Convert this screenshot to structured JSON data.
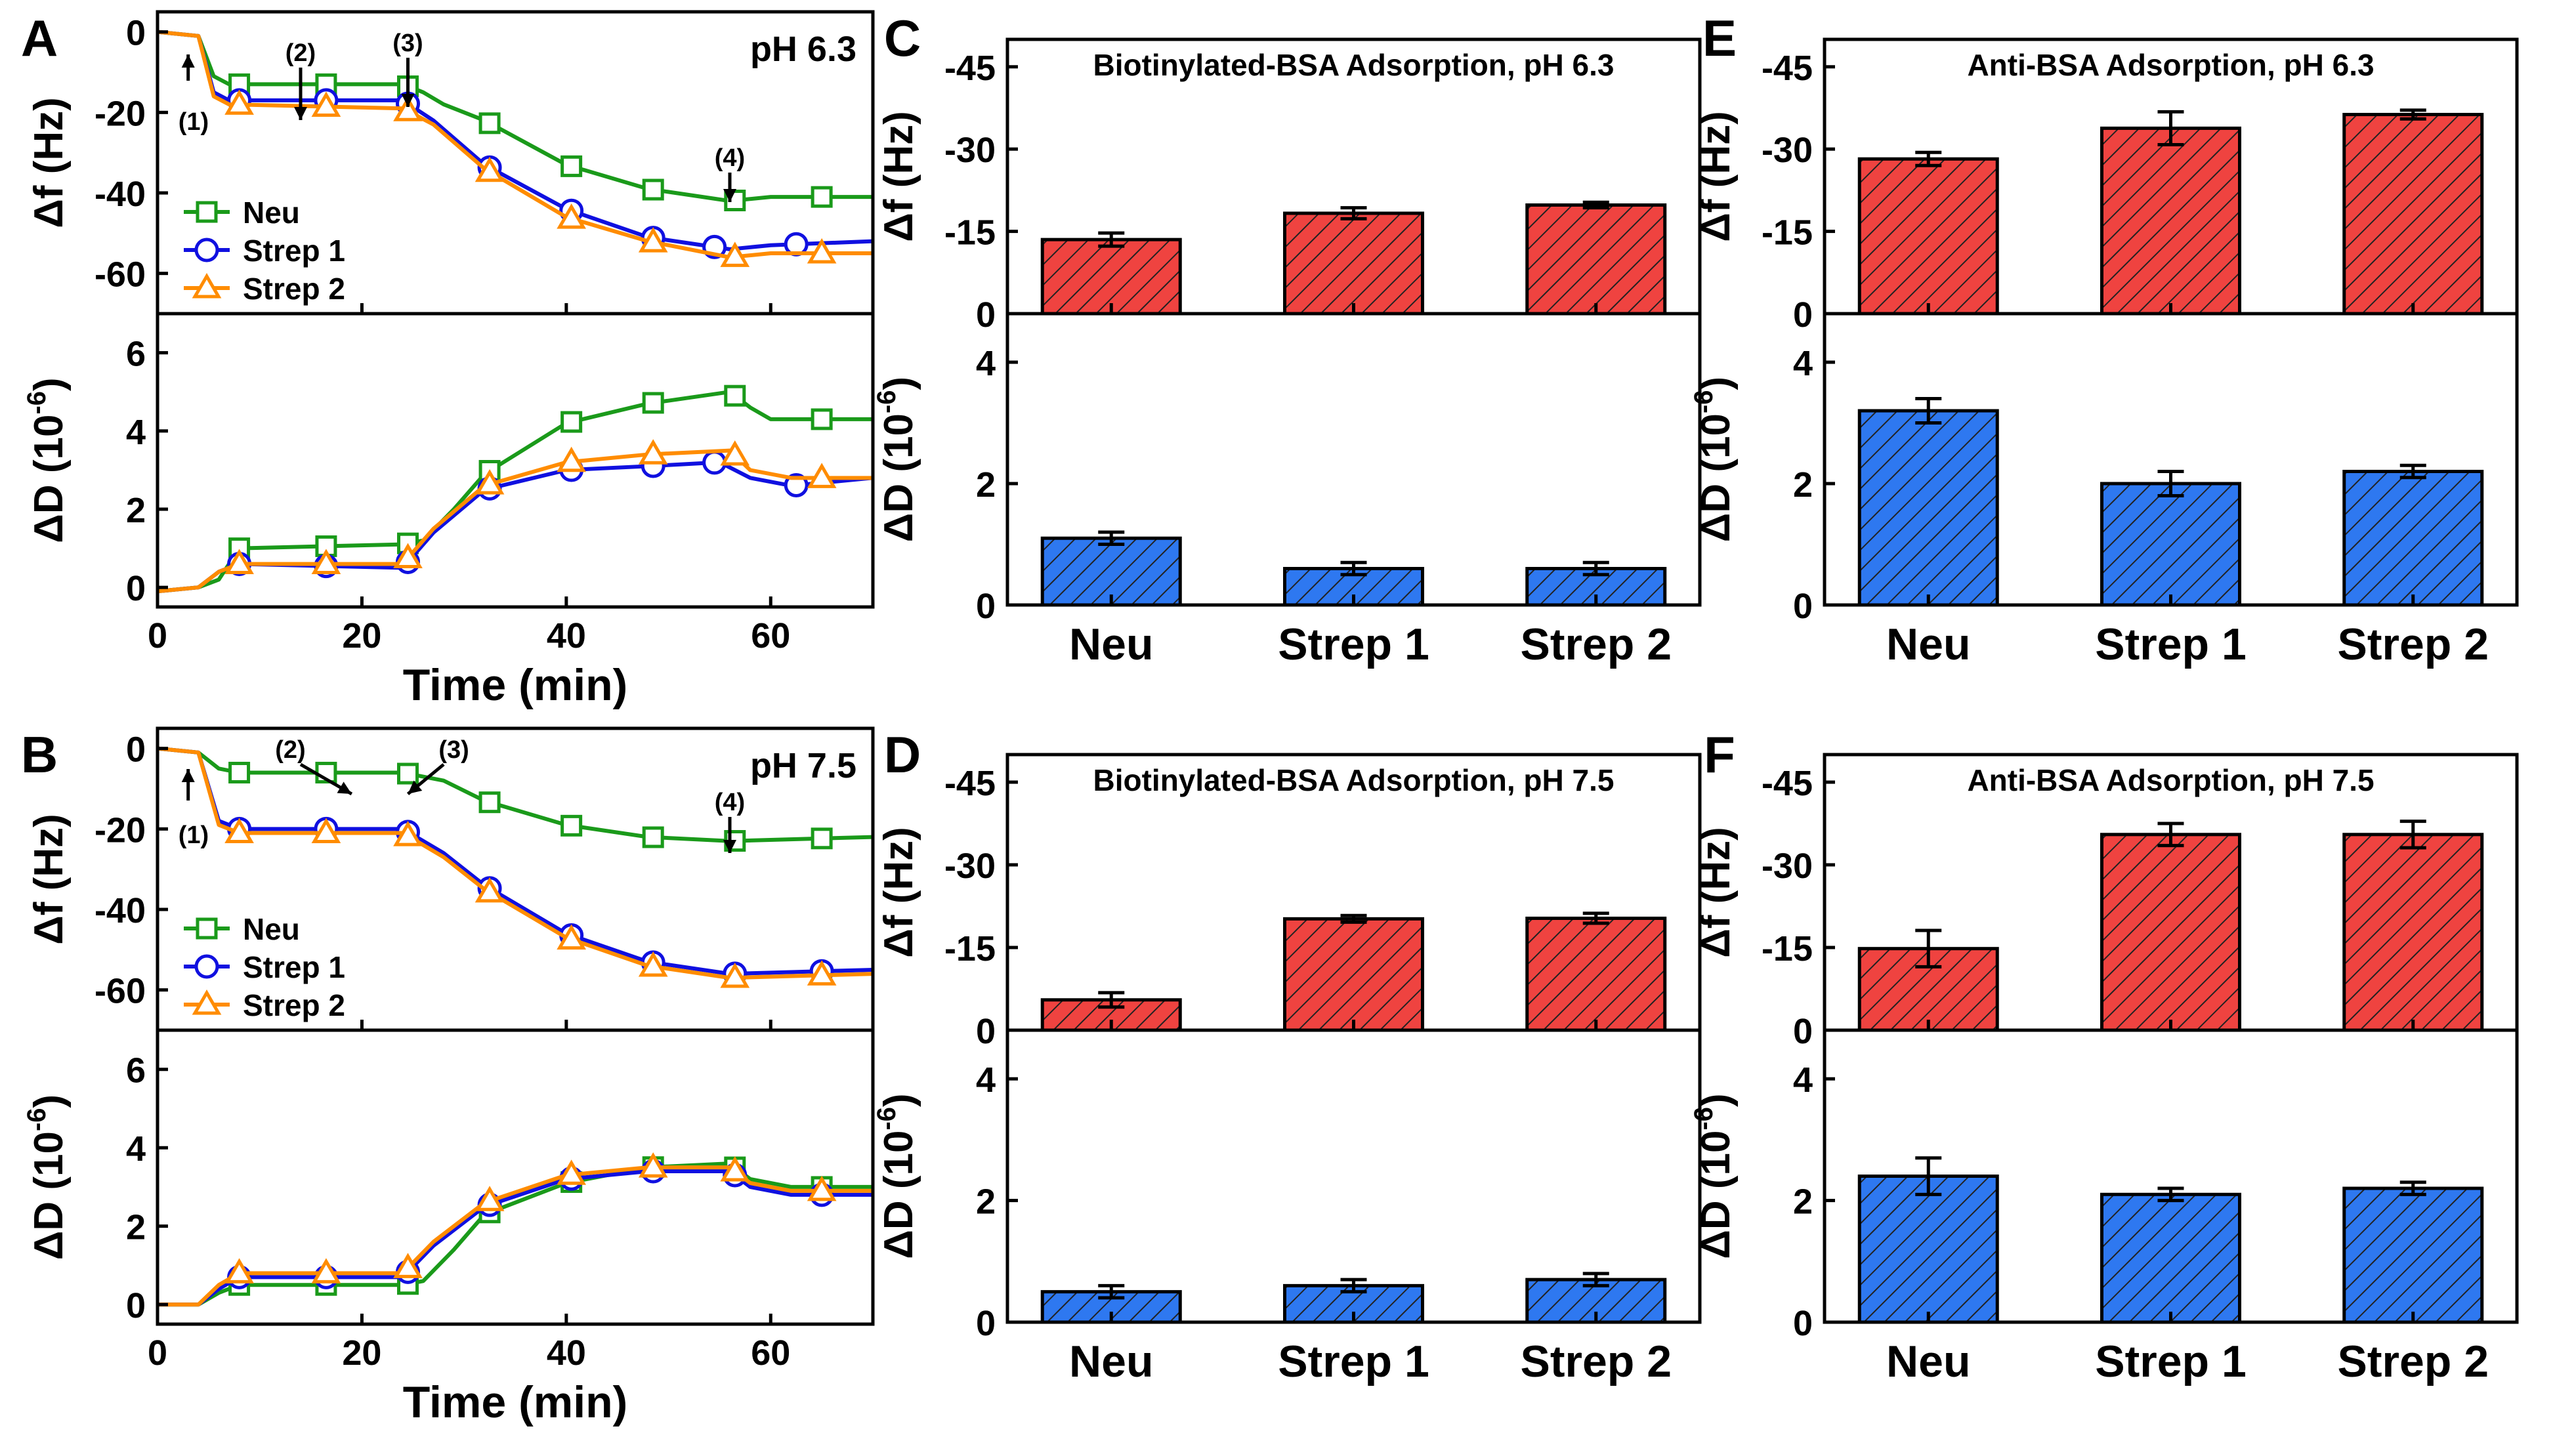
{
  "colors": {
    "neu": "#1a9a1a",
    "strep1": "#1010e0",
    "strep2": "#ff8c00",
    "bar_df": "#ef4340",
    "bar_dd": "#2e78f0",
    "axis": "#000000"
  },
  "chart_data": [
    {
      "panel": "A",
      "type": "line",
      "condition": "pH 6.3",
      "xlabel": "Time (min)",
      "xlim": [
        0,
        70
      ],
      "xticks": [
        0,
        20,
        40,
        60
      ],
      "legend": [
        "Neu",
        "Strep 1",
        "Strep 2"
      ],
      "legend_position": "lower-left",
      "annotations": [
        "(1)",
        "(2)",
        "(3)",
        "(4)"
      ],
      "annotation_x": [
        3,
        14,
        24.5,
        56
      ],
      "df": {
        "ylabel": "Δf (Hz)",
        "ylim": [
          -70,
          5
        ],
        "yticks": [
          0,
          -20,
          -40,
          -60
        ],
        "series": [
          {
            "name": "Neu",
            "x": [
              0,
              4,
              5.5,
              7,
              24,
              26,
              28,
              32,
              40,
              48,
              56,
              60,
              70
            ],
            "y": [
              0,
              -1,
              -11,
              -13,
              -13,
              -15,
              -18,
              -22,
              -33,
              -39,
              -42,
              -41,
              -41
            ],
            "markers_x": [
              8,
              16.5,
              24.5,
              32.5,
              40.5,
              48.5,
              56.5,
              65
            ]
          },
          {
            "name": "Strep 1",
            "x": [
              0,
              4,
              5.5,
              7,
              24,
              27,
              32,
              40,
              48,
              56,
              60,
              70
            ],
            "y": [
              0,
              -1,
              -15,
              -17,
              -17,
              -22,
              -33,
              -44,
              -51,
              -54,
              -53,
              -52
            ],
            "markers_x": [
              8,
              16.5,
              24.5,
              32.5,
              40.5,
              48.5,
              54.5,
              62.5
            ]
          },
          {
            "name": "Strep 2",
            "x": [
              0,
              4,
              5.5,
              7,
              24,
              27,
              32,
              40,
              48,
              56,
              60,
              70
            ],
            "y": [
              0,
              -1,
              -16,
              -18,
              -19,
              -23,
              -34,
              -46,
              -52,
              -56,
              -55,
              -55
            ],
            "markers_x": [
              8,
              16.5,
              24.5,
              32.5,
              40.5,
              48.5,
              56.5,
              65
            ]
          }
        ]
      },
      "dd": {
        "ylabel": "ΔD (10⁻⁶)",
        "ylim": [
          -0.5,
          7
        ],
        "yticks": [
          0,
          2,
          4,
          6
        ],
        "series": [
          {
            "name": "Neu",
            "x": [
              0,
              4,
              6,
              8,
              24,
              26,
              29,
              32,
              40,
              48,
              56,
              58,
              60,
              70
            ],
            "y": [
              -0.1,
              0,
              0.2,
              1.0,
              1.1,
              1.2,
              2.0,
              2.9,
              4.2,
              4.7,
              5.0,
              4.6,
              4.3,
              4.3
            ],
            "markers_x": [
              8,
              16.5,
              24.5,
              32.5,
              40.5,
              48.5,
              56.5,
              65
            ]
          },
          {
            "name": "Strep 1",
            "x": [
              0,
              4,
              6,
              8,
              24,
              27,
              32,
              40,
              48,
              55,
              58,
              62,
              70
            ],
            "y": [
              -0.1,
              0,
              0.4,
              0.6,
              0.5,
              1.4,
              2.5,
              3.0,
              3.1,
              3.2,
              2.8,
              2.6,
              2.8
            ],
            "markers_x": [
              8,
              16.5,
              24.5,
              32.5,
              40.5,
              48.5,
              54.5,
              62.5
            ]
          },
          {
            "name": "Strep 2",
            "x": [
              0,
              4,
              6,
              8,
              24,
              27,
              32,
              40,
              48,
              56,
              58,
              62,
              70
            ],
            "y": [
              -0.1,
              0,
              0.4,
              0.6,
              0.6,
              1.5,
              2.6,
              3.2,
              3.4,
              3.5,
              3.0,
              2.8,
              2.8
            ],
            "markers_x": [
              8,
              16.5,
              24.5,
              32.5,
              40.5,
              48.5,
              56.5,
              65
            ]
          }
        ]
      }
    },
    {
      "panel": "B",
      "type": "line",
      "condition": "pH 7.5",
      "xlabel": "Time (min)",
      "xlim": [
        0,
        70
      ],
      "xticks": [
        0,
        20,
        40,
        60
      ],
      "legend": [
        "Neu",
        "Strep 1",
        "Strep 2"
      ],
      "legend_position": "lower-left",
      "annotations": [
        "(1)",
        "(2)",
        "(3)",
        "(4)"
      ],
      "annotation_x": [
        3,
        14,
        24.5,
        56
      ],
      "df": {
        "ylabel": "Δf (Hz)",
        "ylim": [
          -70,
          5
        ],
        "yticks": [
          0,
          -20,
          -40,
          -60
        ],
        "series": [
          {
            "name": "Neu",
            "x": [
              0,
              4,
              6,
              8,
              24,
              28,
              32,
              40,
              48,
              56,
              70
            ],
            "y": [
              0,
              -1,
              -5,
              -6,
              -6,
              -8,
              -13,
              -19,
              -22,
              -23,
              -22
            ],
            "markers_x": [
              8,
              16.5,
              24.5,
              32.5,
              40.5,
              48.5,
              56.5,
              65
            ]
          },
          {
            "name": "Strep 1",
            "x": [
              0,
              4,
              6,
              8,
              24,
              28,
              32,
              40,
              48,
              56,
              70
            ],
            "y": [
              0,
              -1,
              -18,
              -20,
              -20,
              -26,
              -34,
              -46,
              -53,
              -56,
              -55
            ],
            "markers_x": [
              8,
              16.5,
              24.5,
              32.5,
              40.5,
              48.5,
              56.5,
              65
            ]
          },
          {
            "name": "Strep 2",
            "x": [
              0,
              4,
              6,
              8,
              24,
              28,
              32,
              40,
              48,
              56,
              70
            ],
            "y": [
              0,
              -1,
              -19,
              -21,
              -21,
              -27,
              -35,
              -47,
              -54,
              -57,
              -56
            ],
            "markers_x": [
              8,
              16.5,
              24.5,
              32.5,
              40.5,
              48.5,
              56.5,
              65
            ]
          }
        ]
      },
      "dd": {
        "ylabel": "ΔD (10⁻⁶)",
        "ylim": [
          -0.5,
          7
        ],
        "yticks": [
          0,
          2,
          4,
          6
        ],
        "series": [
          {
            "name": "Neu",
            "x": [
              0,
              4,
              6,
              8,
              24,
              26,
              29,
              32,
              40,
              48,
              56,
              58,
              62,
              70
            ],
            "y": [
              0,
              0,
              0.3,
              0.5,
              0.5,
              0.6,
              1.4,
              2.3,
              3.1,
              3.5,
              3.6,
              3.2,
              3.0,
              3.0
            ],
            "markers_x": [
              8,
              16.5,
              24.5,
              32.5,
              40.5,
              48.5,
              56.5,
              65
            ]
          },
          {
            "name": "Strep 1",
            "x": [
              0,
              4,
              6,
              8,
              24,
              27,
              32,
              40,
              48,
              56,
              58,
              62,
              70
            ],
            "y": [
              0,
              0,
              0.4,
              0.7,
              0.7,
              1.5,
              2.5,
              3.2,
              3.4,
              3.4,
              3.0,
              2.8,
              2.8
            ],
            "markers_x": [
              8,
              16.5,
              24.5,
              32.5,
              40.5,
              48.5,
              56.5,
              65
            ]
          },
          {
            "name": "Strep 2",
            "x": [
              0,
              4,
              6,
              8,
              24,
              27,
              32,
              40,
              48,
              56,
              58,
              62,
              70
            ],
            "y": [
              0,
              0,
              0.5,
              0.8,
              0.8,
              1.6,
              2.6,
              3.3,
              3.5,
              3.5,
              3.1,
              2.9,
              2.9
            ],
            "markers_x": [
              8,
              16.5,
              24.5,
              32.5,
              40.5,
              48.5,
              56.5,
              65
            ]
          }
        ]
      }
    },
    {
      "panel": "C",
      "type": "bar",
      "title": "Biotinylated-BSA Adsorption, pH 6.3",
      "categories": [
        "Neu",
        "Strep 1",
        "Strep 2"
      ],
      "df": {
        "ylabel": "Δf (Hz)",
        "ylim": [
          0,
          -50
        ],
        "yticks": [
          0,
          -15,
          -30,
          -45
        ],
        "values": [
          -13.5,
          -18.3,
          -19.8
        ],
        "errors": [
          1.2,
          1.0,
          0.5
        ]
      },
      "dd": {
        "ylabel": "ΔD (10⁻⁶)",
        "ylim": [
          0,
          4.8
        ],
        "yticks": [
          0,
          2,
          4
        ],
        "values": [
          1.1,
          0.6,
          0.6
        ],
        "errors": [
          0.1,
          0.1,
          0.1
        ]
      }
    },
    {
      "panel": "D",
      "type": "bar",
      "title": "Biotinylated-BSA Adsorption, pH 7.5",
      "categories": [
        "Neu",
        "Strep 1",
        "Strep 2"
      ],
      "df": {
        "ylabel": "Δf (Hz)",
        "ylim": [
          0,
          -50
        ],
        "yticks": [
          0,
          -15,
          -30,
          -45
        ],
        "values": [
          -5.5,
          -20.2,
          -20.3
        ],
        "errors": [
          1.3,
          0.6,
          0.9
        ]
      },
      "dd": {
        "ylabel": "ΔD (10⁻⁶)",
        "ylim": [
          0,
          4.8
        ],
        "yticks": [
          0,
          2,
          4
        ],
        "values": [
          0.5,
          0.6,
          0.7
        ],
        "errors": [
          0.1,
          0.1,
          0.1
        ]
      }
    },
    {
      "panel": "E",
      "type": "bar",
      "title": "Anti-BSA Adsorption, pH 6.3",
      "categories": [
        "Neu",
        "Strep 1",
        "Strep 2"
      ],
      "df": {
        "ylabel": "Δf (Hz)",
        "ylim": [
          0,
          -50
        ],
        "yticks": [
          0,
          -15,
          -30,
          -45
        ],
        "values": [
          -28.2,
          -33.8,
          -36.3
        ],
        "errors": [
          1.2,
          3.0,
          0.8
        ]
      },
      "dd": {
        "ylabel": "ΔD (10⁻⁶)",
        "ylim": [
          0,
          4.8
        ],
        "yticks": [
          0,
          2,
          4
        ],
        "values": [
          3.2,
          2.0,
          2.2
        ],
        "errors": [
          0.2,
          0.2,
          0.1
        ]
      }
    },
    {
      "panel": "F",
      "type": "bar",
      "title": "Anti-BSA Adsorption, pH 7.5",
      "categories": [
        "Neu",
        "Strep 1",
        "Strep 2"
      ],
      "df": {
        "ylabel": "Δf (Hz)",
        "ylim": [
          0,
          -50
        ],
        "yticks": [
          0,
          -15,
          -30,
          -45
        ],
        "values": [
          -14.8,
          -35.5,
          -35.5
        ],
        "errors": [
          3.3,
          2.0,
          2.4
        ]
      },
      "dd": {
        "ylabel": "ΔD (10⁻⁶)",
        "ylim": [
          0,
          4.8
        ],
        "yticks": [
          0,
          2,
          4
        ],
        "values": [
          2.4,
          2.1,
          2.2
        ],
        "errors": [
          0.3,
          0.1,
          0.1
        ]
      }
    }
  ]
}
